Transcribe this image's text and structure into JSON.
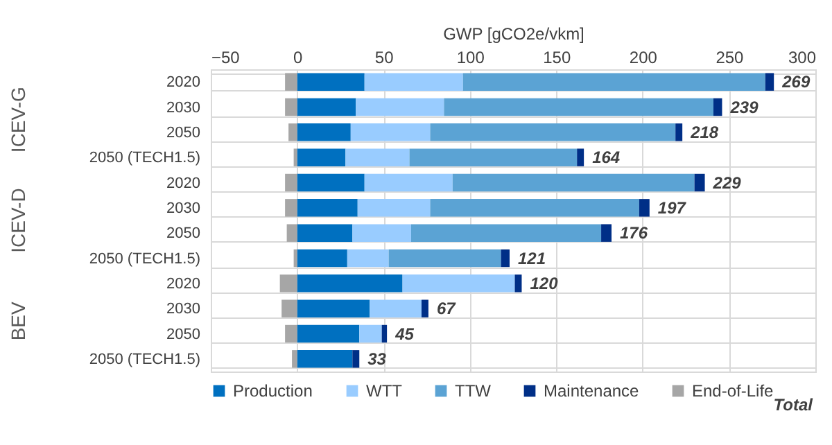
{
  "chart_data": {
    "type": "bar",
    "orientation": "horizontal",
    "stacked": true,
    "xlabel": "GWP [gCO2e/vkm]",
    "categories": [
      "2020",
      "2030",
      "2050",
      "2050 (TECH1.5)",
      "2020",
      "2030",
      "2050",
      "2050 (TECH1.5)",
      "2020",
      "2030",
      "2050",
      "2050 (TECH1.5)"
    ],
    "series": [
      {
        "name": "Production",
        "color": "#0070c0",
        "values": [
          39,
          34,
          31,
          28,
          39,
          35,
          32,
          29,
          61,
          42,
          36,
          32
        ]
      },
      {
        "name": "WTT",
        "color": "#99ccff",
        "values": [
          57,
          51,
          46,
          37,
          51,
          42,
          34,
          24,
          65,
          30,
          13,
          0
        ]
      },
      {
        "name": "TTW",
        "color": "#5ba3d4",
        "values": [
          175,
          156,
          142,
          97,
          140,
          121,
          110,
          65,
          0,
          0,
          0,
          0
        ]
      },
      {
        "name": "Maintenance",
        "color": "#002f87",
        "values": [
          5,
          5,
          4,
          4,
          6,
          6,
          6,
          5,
          4,
          4,
          3,
          4
        ]
      },
      {
        "name": "End-of-Life",
        "color": "#a6a6a6",
        "values": [
          -7,
          -7,
          -5,
          -2,
          -7,
          -7,
          -6,
          -2,
          -10,
          -9,
          -7,
          -3
        ]
      }
    ],
    "totals": [
      "269",
      "239",
      "218",
      "164",
      "229",
      "197",
      "176",
      "121",
      "120",
      "67",
      "45",
      "33"
    ],
    "annotations": [
      "ICEV-G",
      "ICEV-D",
      "BEV",
      "Total"
    ],
    "xlim": [
      -50,
      300
    ],
    "xticks": [
      -50,
      0,
      50,
      100,
      150,
      200,
      250,
      300
    ],
    "grid": true,
    "legend": "bottom"
  }
}
